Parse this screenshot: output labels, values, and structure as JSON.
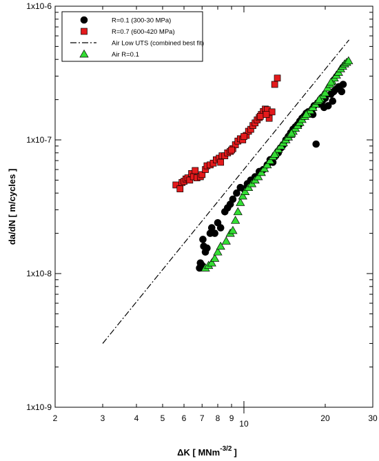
{
  "chart_data": {
    "type": "scatter",
    "xlabel": "ΔK [ MNm",
    "xlabel_sup": "-3/2",
    "xlabel_end": "]",
    "ylabel": "da/dN [ m/cycles ]",
    "x_scale": "log",
    "y_scale": "log",
    "xlim": [
      2,
      30
    ],
    "ylim": [
      1e-09,
      1e-06
    ],
    "x_ticks_major": [
      {
        "value": 10,
        "label": "10"
      }
    ],
    "x_ticks_labeled": [
      {
        "value": 2,
        "label": "2"
      },
      {
        "value": 3,
        "label": "3"
      },
      {
        "value": 4,
        "label": "4"
      },
      {
        "value": 5,
        "label": "5"
      },
      {
        "value": 6,
        "label": "6"
      },
      {
        "value": 7,
        "label": "7"
      },
      {
        "value": 8,
        "label": "8"
      },
      {
        "value": 9,
        "label": "9"
      },
      {
        "value": 20,
        "label": "20"
      },
      {
        "value": 30,
        "label": "30"
      }
    ],
    "y_ticks": [
      {
        "value": 1e-09,
        "label": "1x10-9"
      },
      {
        "value": 1e-08,
        "label": "1x10-8"
      },
      {
        "value": 1e-07,
        "label": "1x10-7"
      },
      {
        "value": 1e-06,
        "label": "1x10-6"
      }
    ],
    "grid": false,
    "legend_position": "top-left",
    "series": [
      {
        "name": "R=0.1 (300-30 MPa)",
        "marker": "circle",
        "color": "#000000",
        "points": [
          [
            6.85,
            1.1e-08
          ],
          [
            6.9,
            1.2e-08
          ],
          [
            7.0,
            1.15e-08
          ],
          [
            7.05,
            1.8e-08
          ],
          [
            7.1,
            1.6e-08
          ],
          [
            7.2,
            1.45e-08
          ],
          [
            7.3,
            1.55e-08
          ],
          [
            7.5,
            2e-08
          ],
          [
            7.6,
            2.2e-08
          ],
          [
            7.8,
            2e-08
          ],
          [
            8.0,
            2.4e-08
          ],
          [
            8.2,
            2.2e-08
          ],
          [
            8.5,
            2.9e-08
          ],
          [
            8.7,
            3.1e-08
          ],
          [
            8.9,
            3.3e-08
          ],
          [
            9.1,
            3.6e-08
          ],
          [
            9.4,
            4e-08
          ],
          [
            9.7,
            4.4e-08
          ],
          [
            10.0,
            4.3e-08
          ],
          [
            10.3,
            4.7e-08
          ],
          [
            10.6,
            5e-08
          ],
          [
            11.0,
            5.3e-08
          ],
          [
            11.4,
            5.8e-08
          ],
          [
            11.8,
            6e-08
          ],
          [
            12.2,
            6.5e-08
          ],
          [
            12.5,
            7.1e-08
          ],
          [
            12.8,
            6.8e-08
          ],
          [
            13.1,
            7.6e-08
          ],
          [
            13.4,
            8e-08
          ],
          [
            13.7,
            8.7e-08
          ],
          [
            14.0,
            9.2e-08
          ],
          [
            14.3,
            1e-07
          ],
          [
            14.6,
            1.06e-07
          ],
          [
            14.9,
            1.13e-07
          ],
          [
            15.2,
            1.2e-07
          ],
          [
            15.5,
            1.25e-07
          ],
          [
            15.8,
            1.3e-07
          ],
          [
            16.1,
            1.38e-07
          ],
          [
            16.4,
            1.45e-07
          ],
          [
            16.7,
            1.5e-07
          ],
          [
            17.0,
            1.58e-07
          ],
          [
            17.3,
            1.62e-07
          ],
          [
            17.6,
            1.6e-07
          ],
          [
            17.9,
            1.7e-07
          ],
          [
            18.2,
            1.8e-07
          ],
          [
            18.5,
            9.3e-08
          ],
          [
            19.0,
            1.85e-07
          ],
          [
            19.5,
            1.95e-07
          ],
          [
            20.0,
            2.05e-07
          ],
          [
            20.5,
            1.8e-07
          ],
          [
            21.0,
            2.2e-07
          ],
          [
            21.5,
            2.3e-07
          ],
          [
            22.0,
            2.4e-07
          ],
          [
            22.5,
            2.5e-07
          ],
          [
            23.0,
            2.3e-07
          ],
          [
            23.3,
            2.6e-07
          ],
          [
            16.0,
            1.3e-07
          ],
          [
            15.0,
            1.1e-07
          ],
          [
            18.0,
            1.55e-07
          ],
          [
            19.8,
            1.75e-07
          ],
          [
            21.3,
            1.95e-07
          ]
        ]
      },
      {
        "name": "R=0.7 (600-420 MPa)",
        "marker": "square",
        "color": "#e31a1c",
        "points": [
          [
            5.6,
            4.6e-08
          ],
          [
            5.8,
            4.3e-08
          ],
          [
            5.9,
            4.8e-08
          ],
          [
            6.0,
            4.9e-08
          ],
          [
            6.1,
            5.1e-08
          ],
          [
            6.2,
            5.2e-08
          ],
          [
            6.3,
            5e-08
          ],
          [
            6.4,
            5.6e-08
          ],
          [
            6.5,
            5.3e-08
          ],
          [
            6.6,
            5.9e-08
          ],
          [
            6.7,
            5.2e-08
          ],
          [
            6.9,
            5.3e-08
          ],
          [
            7.0,
            5.5e-08
          ],
          [
            7.2,
            6e-08
          ],
          [
            7.3,
            6.4e-08
          ],
          [
            7.5,
            6.5e-08
          ],
          [
            7.7,
            6.7e-08
          ],
          [
            7.9,
            7.1e-08
          ],
          [
            8.1,
            7.3e-08
          ],
          [
            8.3,
            7.6e-08
          ],
          [
            8.5,
            7.6e-08
          ],
          [
            8.7,
            8e-08
          ],
          [
            8.9,
            8.2e-08
          ],
          [
            9.1,
            8.6e-08
          ],
          [
            9.3,
            9.2e-08
          ],
          [
            9.5,
            9.8e-08
          ],
          [
            9.7,
            1.02e-07
          ],
          [
            9.9,
            1e-07
          ],
          [
            10.2,
            1.08e-07
          ],
          [
            10.4,
            1.16e-07
          ],
          [
            10.6,
            1.2e-07
          ],
          [
            10.8,
            1.28e-07
          ],
          [
            11.0,
            1.34e-07
          ],
          [
            11.2,
            1.41e-07
          ],
          [
            11.4,
            1.47e-07
          ],
          [
            11.6,
            1.55e-07
          ],
          [
            11.8,
            1.63e-07
          ],
          [
            12.0,
            1.7e-07
          ],
          [
            12.2,
            1.68e-07
          ],
          [
            12.4,
            1.45e-07
          ],
          [
            12.7,
            1.62e-07
          ],
          [
            13.0,
            2.6e-07
          ],
          [
            13.3,
            2.9e-07
          ],
          [
            8.2,
            6.8e-08
          ],
          [
            9.0,
            8.4e-08
          ],
          [
            10.0,
            1.06e-07
          ],
          [
            11.5,
            1.5e-07
          ],
          [
            12.1,
            1.55e-07
          ]
        ]
      },
      {
        "name": "Air Low UTS (combined best fit)",
        "marker": "line-dashdot",
        "color": "#000000",
        "line": [
          [
            3.0,
            3e-09
          ],
          [
            24.5,
            5.6e-07
          ]
        ]
      },
      {
        "name": "Air R=0.1",
        "marker": "triangle",
        "color": "#33dd33",
        "points": [
          [
            7.2,
            1.1e-08
          ],
          [
            7.4,
            1.15e-08
          ],
          [
            7.6,
            1.2e-08
          ],
          [
            7.8,
            1.3e-08
          ],
          [
            8.0,
            1.45e-08
          ],
          [
            8.2,
            1.6e-08
          ],
          [
            8.6,
            1.75e-08
          ],
          [
            8.9,
            2e-08
          ],
          [
            9.1,
            2.1e-08
          ],
          [
            9.3,
            2.5e-08
          ],
          [
            9.5,
            2.9e-08
          ],
          [
            9.7,
            3.4e-08
          ],
          [
            9.9,
            3.8e-08
          ],
          [
            10.1,
            4.1e-08
          ],
          [
            10.4,
            4.4e-08
          ],
          [
            10.7,
            4.7e-08
          ],
          [
            11.0,
            5e-08
          ],
          [
            11.3,
            5.3e-08
          ],
          [
            11.6,
            5.7e-08
          ],
          [
            11.9,
            6.1e-08
          ],
          [
            12.2,
            6.5e-08
          ],
          [
            12.5,
            7e-08
          ],
          [
            12.8,
            7.5e-08
          ],
          [
            13.1,
            8e-08
          ],
          [
            13.4,
            8.5e-08
          ],
          [
            13.7,
            9e-08
          ],
          [
            14.0,
            9.5e-08
          ],
          [
            14.3,
            1e-07
          ],
          [
            14.6,
            1.05e-07
          ],
          [
            14.9,
            1.1e-07
          ],
          [
            15.2,
            1.16e-07
          ],
          [
            15.5,
            1.22e-07
          ],
          [
            15.8,
            1.28e-07
          ],
          [
            16.1,
            1.35e-07
          ],
          [
            16.4,
            1.42e-07
          ],
          [
            16.8,
            1.5e-07
          ],
          [
            17.2,
            1.58e-07
          ],
          [
            17.6,
            1.66e-07
          ],
          [
            18.0,
            1.75e-07
          ],
          [
            18.4,
            1.85e-07
          ],
          [
            18.8,
            1.95e-07
          ],
          [
            19.2,
            2.05e-07
          ],
          [
            19.6,
            2.15e-07
          ],
          [
            20.0,
            2.25e-07
          ],
          [
            20.4,
            2.45e-07
          ],
          [
            20.8,
            2.6e-07
          ],
          [
            21.2,
            2.75e-07
          ],
          [
            21.6,
            2.9e-07
          ],
          [
            22.0,
            3.05e-07
          ],
          [
            22.4,
            3.2e-07
          ],
          [
            22.8,
            3.4e-07
          ],
          [
            23.2,
            3.55e-07
          ],
          [
            23.6,
            3.7e-07
          ],
          [
            24.0,
            3.8e-07
          ],
          [
            24.4,
            3.9e-07
          ],
          [
            13.0,
            7.8e-08
          ],
          [
            15.0,
            1.12e-07
          ],
          [
            17.0,
            1.55e-07
          ],
          [
            19.0,
            2e-07
          ],
          [
            21.0,
            2.7e-07
          ]
        ]
      }
    ]
  }
}
